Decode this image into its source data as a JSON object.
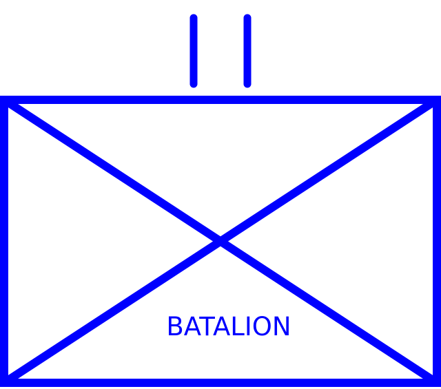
{
  "symbol": {
    "label": "BATALION",
    "color": "#0000ff",
    "frame": "rectangle",
    "icon": "infantry-cross",
    "echelon": "battalion",
    "echelon_marks": 2
  }
}
